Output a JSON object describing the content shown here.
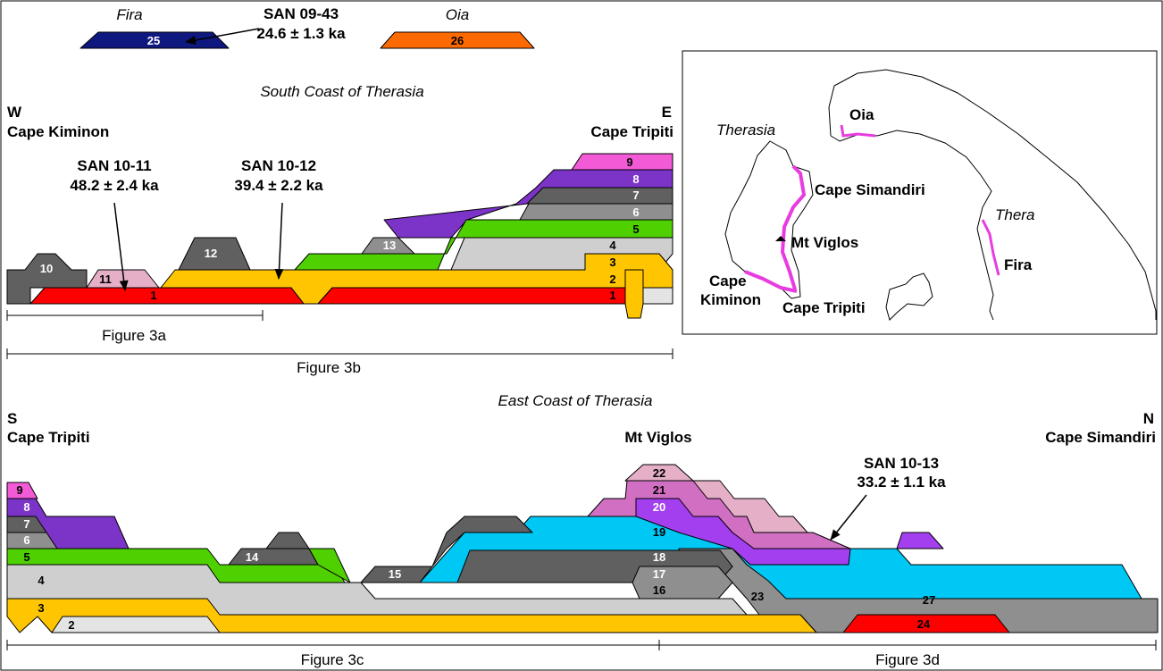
{
  "colors": {
    "pink": "#F25AD6",
    "purple": "#7B33C8",
    "grey_dark": "#606060",
    "grey_mid": "#8F8F8F",
    "grey_light": "#CFCFCF",
    "grey_pale": "#E4E4E4",
    "green": "#4FD000",
    "yellow": "#FFC500",
    "red": "#FF0000",
    "cyan": "#00C8F5",
    "mauve": "#D16FC2",
    "violet": "#A33FEF",
    "pink_pale": "#E5AFC8",
    "navy": "#0F187F",
    "orange": "#FF6A00"
  },
  "top_legend": {
    "fira_label": "Fira",
    "fira_unit": "25",
    "oia_label": "Oia",
    "oia_unit": "26",
    "sample_id": "SAN 09-43",
    "sample_age": "24.6 ± 1.3 ka"
  },
  "south_section": {
    "title": "South Coast of Therasia",
    "west_dir": "W",
    "west_place": "Cape Kiminon",
    "east_dir": "E",
    "east_place": "Cape Tripiti",
    "sample1_id": "SAN 10-11",
    "sample1_age": "48.2 ± 2.4 ka",
    "sample2_id": "SAN 10-12",
    "sample2_age": "39.4 ± 2.2 ka",
    "units": [
      "9",
      "8",
      "7",
      "6",
      "5",
      "4",
      "3",
      "2",
      "1",
      "1",
      "10",
      "11",
      "12",
      "13"
    ],
    "scale_a": "Figure 3a",
    "scale_b": "Figure 3b"
  },
  "east_section": {
    "title": "East Coast of Therasia",
    "south_dir": "S",
    "south_place": "Cape Tripiti",
    "north_dir": "N",
    "north_place": "Cape Simandiri",
    "mid_place": "Mt Viglos",
    "sample_id": "SAN 10-13",
    "sample_age": "33.2 ± 1.1 ka",
    "units": [
      "9",
      "8",
      "7",
      "6",
      "5",
      "4",
      "3",
      "2",
      "14",
      "15",
      "22",
      "21",
      "20",
      "19",
      "18",
      "17",
      "16",
      "23",
      "27",
      "24"
    ],
    "scale_c": "Figure 3c",
    "scale_d": "Figure 3d"
  },
  "map": {
    "therasia": "Therasia",
    "thera": "Thera",
    "oia": "Oia",
    "fira": "Fira",
    "cape_simandiri": "Cape Simandiri",
    "mt_viglos": "Mt Viglos",
    "cape_kiminon_1": "Cape",
    "cape_kiminon_2": "Kiminon",
    "cape_tripiti": "Cape Tripiti"
  }
}
